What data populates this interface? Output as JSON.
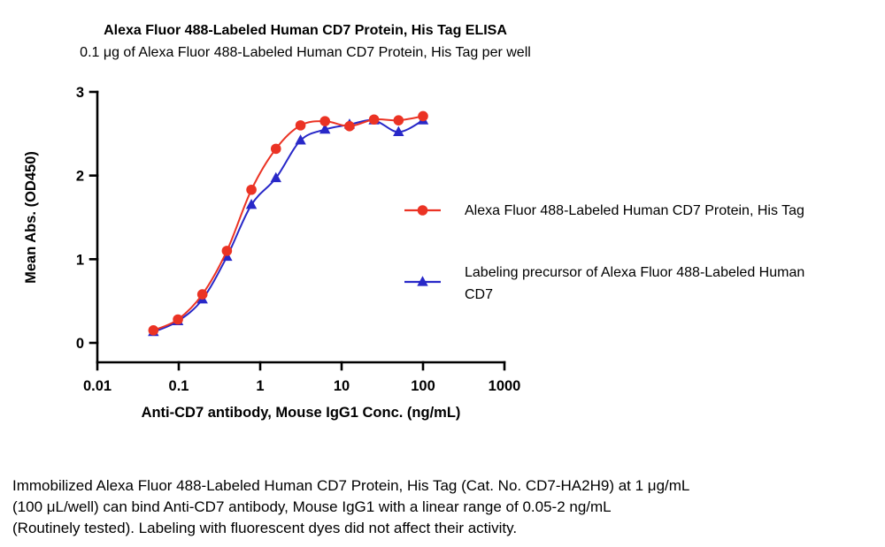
{
  "chart_data": {
    "type": "line",
    "title": "Alexa Fluor 488-Labeled Human CD7 Protein, His Tag ELISA",
    "subtitle": "0.1 μg of Alexa Fluor 488-Labeled Human CD7 Protein, His Tag per well",
    "xlabel": "Anti-CD7 antibody, Mouse IgG1 Conc. (ng/mL)",
    "ylabel": "Mean Abs. (OD450)",
    "x_scale": "log",
    "xlim": [
      0.01,
      1000
    ],
    "ylim": [
      0,
      3
    ],
    "x_ticks": [
      "0.01",
      "0.1",
      "1",
      "10",
      "100",
      "1000"
    ],
    "y_ticks": [
      "0",
      "1",
      "2",
      "3"
    ],
    "grid": false,
    "legend_position": "right",
    "axis_color": "#000000",
    "x": [
      0.0488,
      0.0977,
      0.195,
      0.39,
      0.78,
      1.56,
      3.13,
      6.25,
      12.5,
      25,
      50,
      100
    ],
    "series": [
      {
        "name": "Alexa Fluor 488-Labeled Human CD7 Protein, His Tag",
        "color": "#EB3324",
        "marker": "circle",
        "values": [
          0.15,
          0.28,
          0.58,
          1.1,
          1.83,
          2.32,
          2.6,
          2.65,
          2.59,
          2.67,
          2.66,
          2.71
        ]
      },
      {
        "name": "Labeling precursor of Alexa Fluor 488-Labeled Human CD7",
        "color": "#2828C8",
        "marker": "triangle-up",
        "values": [
          0.13,
          0.26,
          0.52,
          1.03,
          1.65,
          1.97,
          2.42,
          2.55,
          2.61,
          2.66,
          2.52,
          2.66
        ]
      }
    ]
  },
  "legend": {
    "items": [
      {
        "series": 0,
        "lines": [
          "Alexa Fluor 488-Labeled Human CD7 Protein, His Tag"
        ]
      },
      {
        "series": 1,
        "lines": [
          "Labeling precursor of Alexa Fluor 488-Labeled Human",
          "CD7"
        ]
      }
    ]
  },
  "caption": {
    "lines": [
      "Immobilized Alexa Fluor 488-Labeled Human CD7 Protein, His Tag (Cat. No. CD7-HA2H9) at 1 μg/mL",
      "(100 μL/well) can bind Anti-CD7 antibody, Mouse IgG1 with a linear range of 0.05-2 ng/mL",
      "(Routinely tested). Labeling with fluorescent dyes did not affect their activity."
    ]
  }
}
